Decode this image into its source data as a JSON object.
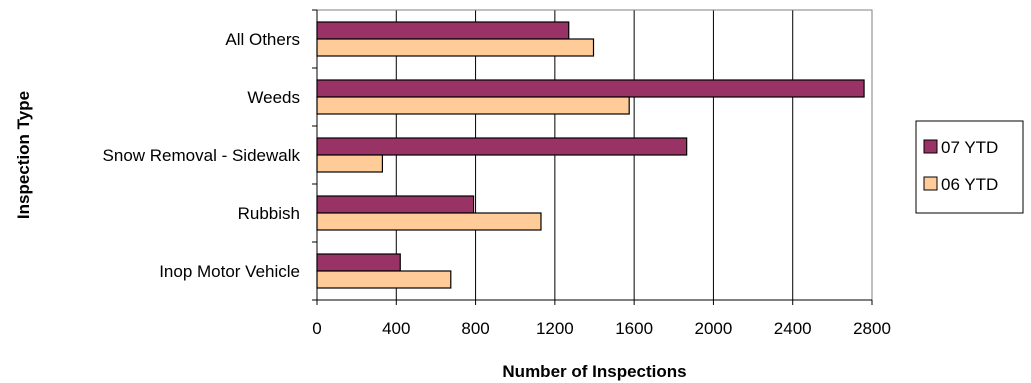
{
  "chart_data": {
    "type": "bar",
    "orientation": "horizontal",
    "xlabel": "Number of Inspections",
    "ylabel": "Inspection Type",
    "categories": [
      "All Others",
      "Weeds",
      "Snow Removal - Sidewalk",
      "Rubbish",
      "Inop Motor Vehicle"
    ],
    "series": [
      {
        "name": "07 YTD",
        "color": "#993366",
        "values": [
          1270,
          2760,
          1865,
          790,
          420
        ]
      },
      {
        "name": "06 YTD",
        "color": "#FFCC99",
        "values": [
          1395,
          1575,
          330,
          1130,
          675
        ]
      }
    ],
    "xlim": [
      0,
      2800
    ],
    "xticks": [
      0,
      400,
      800,
      1200,
      1600,
      2000,
      2400,
      2800
    ],
    "grid": "vertical",
    "legend": "right"
  }
}
